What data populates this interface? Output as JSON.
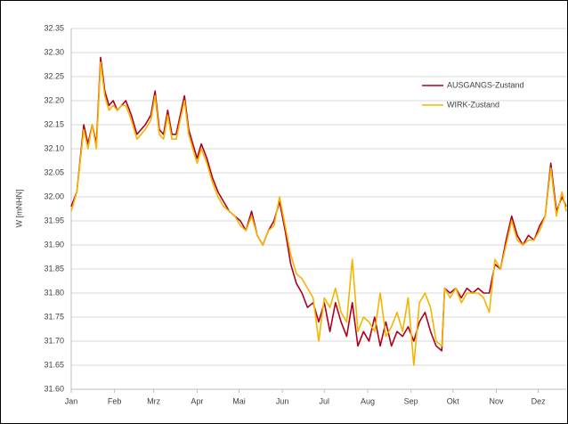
{
  "chart_data": {
    "type": "line",
    "y_label": "W [mNHN]",
    "x": [
      1,
      5,
      10,
      13,
      16,
      19,
      22,
      25,
      28,
      31,
      34,
      37,
      40,
      44,
      48,
      54,
      58,
      61,
      64,
      67,
      70,
      73,
      76,
      82,
      85,
      88,
      91,
      94,
      98,
      102,
      106,
      110,
      114,
      118,
      122,
      126,
      130,
      134,
      138,
      142,
      146,
      150,
      154,
      158,
      162,
      166,
      170,
      174,
      178,
      182,
      186,
      190,
      194,
      198,
      202,
      206,
      210,
      214,
      218,
      222,
      226,
      230,
      234,
      238,
      242,
      246,
      250,
      254,
      258,
      262,
      266,
      268,
      272,
      276,
      280,
      284,
      288,
      292,
      296,
      300,
      304,
      308,
      312,
      316,
      320,
      324,
      328,
      332,
      336,
      340,
      344,
      348,
      352,
      355
    ],
    "series": [
      {
        "name": "AUSGANGS-Zustand",
        "color": "#b0001e",
        "values": [
          31.98,
          32.01,
          32.15,
          32.11,
          32.15,
          32.11,
          32.29,
          32.22,
          32.19,
          32.2,
          32.18,
          32.19,
          32.2,
          32.17,
          32.13,
          32.15,
          32.17,
          32.22,
          32.14,
          32.13,
          32.18,
          32.13,
          32.13,
          32.21,
          32.14,
          32.11,
          32.08,
          32.11,
          32.08,
          32.04,
          32.01,
          31.99,
          31.97,
          31.96,
          31.95,
          31.93,
          31.97,
          31.92,
          31.9,
          31.93,
          31.95,
          31.99,
          31.93,
          31.86,
          31.82,
          31.8,
          31.77,
          31.78,
          31.74,
          31.78,
          31.72,
          31.78,
          31.74,
          31.71,
          31.78,
          31.69,
          31.72,
          31.7,
          31.75,
          31.69,
          31.74,
          31.69,
          31.72,
          31.71,
          31.73,
          31.7,
          31.74,
          31.76,
          31.72,
          31.69,
          31.68,
          31.81,
          31.8,
          31.81,
          31.79,
          31.81,
          31.8,
          31.81,
          31.8,
          31.8,
          31.86,
          31.85,
          31.91,
          31.96,
          31.92,
          31.9,
          31.92,
          31.91,
          31.94,
          31.96,
          32.07,
          31.97,
          32.0,
          31.98
        ]
      },
      {
        "name": "WIRK-Zustand",
        "color": "#f5b400",
        "values": [
          31.97,
          32.01,
          32.14,
          32.1,
          32.15,
          32.1,
          32.28,
          32.21,
          32.18,
          32.19,
          32.18,
          32.19,
          32.19,
          32.16,
          32.12,
          32.14,
          32.16,
          32.21,
          32.13,
          32.12,
          32.17,
          32.12,
          32.12,
          32.2,
          32.13,
          32.1,
          32.07,
          32.1,
          32.07,
          32.03,
          32.0,
          31.98,
          31.97,
          31.96,
          31.94,
          31.93,
          31.96,
          31.92,
          31.9,
          31.93,
          31.94,
          32.0,
          31.94,
          31.88,
          31.84,
          31.83,
          31.81,
          31.79,
          31.7,
          31.79,
          31.77,
          31.81,
          31.76,
          31.74,
          31.87,
          31.72,
          31.75,
          31.74,
          31.72,
          31.8,
          31.71,
          31.73,
          31.76,
          31.72,
          31.79,
          31.65,
          31.78,
          31.8,
          31.77,
          31.7,
          31.69,
          31.81,
          31.79,
          31.81,
          31.78,
          31.8,
          31.8,
          31.8,
          31.79,
          31.76,
          31.87,
          31.85,
          31.9,
          31.95,
          31.91,
          31.9,
          31.91,
          31.91,
          31.93,
          31.96,
          32.06,
          31.96,
          32.01,
          31.97
        ]
      }
    ],
    "xlim": [
      1,
      355
    ],
    "xticks": [
      {
        "value": 1,
        "label": "Jan"
      },
      {
        "value": 32,
        "label": "Feb"
      },
      {
        "value": 60,
        "label": "Mrz"
      },
      {
        "value": 91,
        "label": "Apr"
      },
      {
        "value": 121,
        "label": "Mai"
      },
      {
        "value": 152,
        "label": "Jun"
      },
      {
        "value": 182,
        "label": "Jul"
      },
      {
        "value": 213,
        "label": "Aug"
      },
      {
        "value": 244,
        "label": "Sep"
      },
      {
        "value": 274,
        "label": "Okt"
      },
      {
        "value": 305,
        "label": "Nov"
      },
      {
        "value": 335,
        "label": "Dez"
      }
    ],
    "ylim": [
      31.6,
      32.35
    ],
    "yticks": [
      {
        "value": 31.6,
        "label": "31.60"
      },
      31.65,
      {
        "value": 31.7,
        "label": "31.70"
      },
      31.75,
      {
        "value": 31.8,
        "label": "31.80"
      },
      31.85,
      {
        "value": 31.9,
        "label": "31.90"
      },
      31.95,
      {
        "value": 32.0,
        "label": "32.00"
      },
      32.05,
      {
        "value": 32.1,
        "label": "32.10"
      },
      32.15,
      {
        "value": 32.2,
        "label": "32.20"
      },
      32.25,
      {
        "value": 32.3,
        "label": "32.30"
      },
      32.35
    ],
    "grid": true,
    "legend": "upper-right"
  }
}
